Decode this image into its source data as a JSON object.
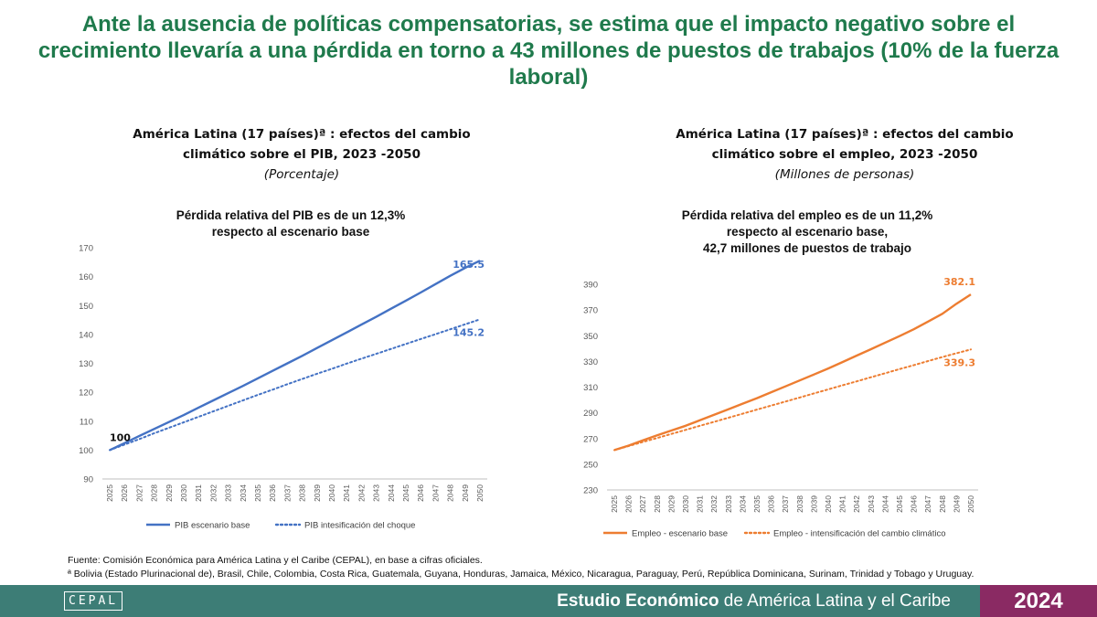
{
  "headline": "Ante la ausencia de políticas compensatorias, se estima que el impacto negativo sobre el crecimiento llevaría a una pérdida en torno a 43 millones de puestos de trabajos (10% de la fuerza laboral)",
  "left_panel": {
    "title_line1": "América Latina (17 países)ª : efectos del cambio",
    "title_line2": "climático sobre el PIB, 2023 -2050",
    "unit": "(Porcentaje)",
    "subtitle_line1": "Pérdida relativa del PIB es de un 12,3%",
    "subtitle_line2": "respecto al escenario base"
  },
  "right_panel": {
    "title_line1": "América Latina (17 países)ª : efectos del cambio",
    "title_line2": "climático sobre el empleo, 2023 -2050",
    "unit": "(Millones de personas)",
    "subtitle_line1": "Pérdida relativa del empleo es de un 11,2%",
    "subtitle_line2": "respecto al escenario base,",
    "subtitle_line3": "42,7 millones de puestos de trabajo"
  },
  "chart_data": [
    {
      "type": "line",
      "x": [
        2025,
        2026,
        2027,
        2028,
        2029,
        2030,
        2031,
        2032,
        2033,
        2034,
        2035,
        2036,
        2037,
        2038,
        2039,
        2040,
        2041,
        2042,
        2043,
        2044,
        2045,
        2046,
        2047,
        2048,
        2049,
        2050
      ],
      "ylim": [
        90,
        170
      ],
      "yticks": [
        90,
        100,
        110,
        120,
        130,
        140,
        150,
        160,
        170
      ],
      "grid": false,
      "legend": "bottom",
      "series": [
        {
          "name": "PIB escenario base",
          "style": "solid",
          "color": "#4472c4",
          "values": [
            100,
            102.4,
            104.9,
            107.3,
            109.7,
            112.1,
            114.7,
            117.2,
            119.7,
            122.2,
            124.8,
            127.4,
            130.0,
            132.6,
            135.3,
            138.0,
            140.7,
            143.4,
            146.1,
            148.9,
            151.7,
            154.5,
            157.4,
            160.3,
            163.0,
            165.5
          ]
        },
        {
          "name": "PIB intesificación del choque",
          "style": "dotted",
          "color": "#4472c4",
          "values": [
            100,
            101.9,
            103.8,
            105.8,
            107.7,
            109.6,
            111.5,
            113.4,
            115.3,
            117.2,
            119.1,
            120.9,
            122.8,
            124.6,
            126.4,
            128.1,
            129.9,
            131.6,
            133.3,
            135.0,
            136.7,
            138.4,
            140.1,
            141.8,
            143.5,
            145.2
          ]
        }
      ],
      "annotations": [
        {
          "x": 2025,
          "text": "100",
          "color": "#111111"
        },
        {
          "x": 2050,
          "text": "165.5",
          "color": "#4472c4"
        },
        {
          "x": 2050,
          "text": "145.2",
          "color": "#4472c4"
        }
      ]
    },
    {
      "type": "line",
      "x": [
        2025,
        2026,
        2027,
        2028,
        2029,
        2030,
        2031,
        2032,
        2033,
        2034,
        2035,
        2036,
        2037,
        2038,
        2039,
        2040,
        2041,
        2042,
        2043,
        2044,
        2045,
        2046,
        2047,
        2048,
        2049,
        2050
      ],
      "ylim": [
        230,
        390
      ],
      "yticks": [
        230,
        250,
        270,
        290,
        310,
        330,
        350,
        370,
        390
      ],
      "grid": false,
      "legend": "bottom",
      "series": [
        {
          "name": "Empleo - escenario base",
          "style": "solid",
          "color": "#ed7d31",
          "values": [
            261,
            264.5,
            268.6,
            272.5,
            276.2,
            279.9,
            284.2,
            288.5,
            292.8,
            297.1,
            301.4,
            306.0,
            310.6,
            315.2,
            319.8,
            324.5,
            329.5,
            334.5,
            339.5,
            344.6,
            349.7,
            355.0,
            361.0,
            367.0,
            374.9,
            382.1
          ]
        },
        {
          "name": "Empleo - intensificación del cambio climático",
          "style": "dotted",
          "color": "#ed7d31",
          "values": [
            261,
            264.1,
            267.3,
            270.4,
            273.6,
            276.7,
            279.9,
            283.0,
            286.2,
            289.3,
            292.5,
            295.6,
            298.8,
            301.9,
            305.1,
            308.2,
            311.4,
            314.5,
            317.7,
            320.8,
            324.0,
            327.1,
            330.3,
            333.4,
            336.4,
            339.3
          ]
        }
      ],
      "annotations": [
        {
          "x": 2050,
          "text": "382.1",
          "color": "#ed7d31"
        },
        {
          "x": 2050,
          "text": "339.3",
          "color": "#ed7d31"
        }
      ]
    }
  ],
  "source": {
    "line1": "Fuente: Comisión Económica para América Latina y el Caribe (CEPAL), en base a cifras oficiales.",
    "line2": "ª Bolivia (Estado Plurinacional de), Brasil, Chile, Colombia, Costa Rica, Guatemala, Guyana, Honduras, Jamaica, México, Nicaragua, Paraguay, Perú, República Dominicana, Surinam, Trinidad y Tobago y Uruguay."
  },
  "footer": {
    "logo": "CEPAL",
    "publication_bold": "Estudio Económico",
    "publication_rest": " de América Latina y el Caribe",
    "year": "2024"
  }
}
